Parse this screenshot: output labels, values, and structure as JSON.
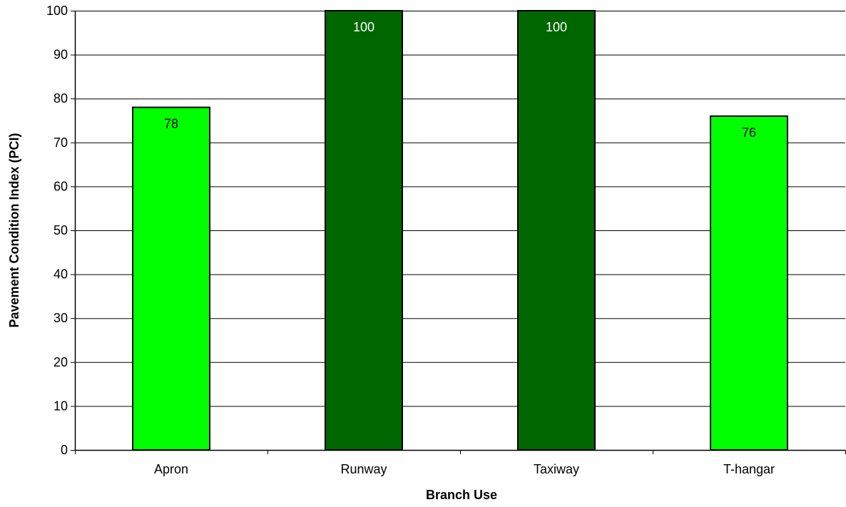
{
  "chart_data": {
    "type": "bar",
    "title": "",
    "xlabel": "Branch Use",
    "ylabel": "Pavement Condition Index (PCI)",
    "categories": [
      "Apron",
      "Runway",
      "Taxiway",
      "T-hangar"
    ],
    "values": [
      78,
      100,
      100,
      76
    ],
    "data_labels": [
      "78",
      "100",
      "100",
      "76"
    ],
    "bar_colors": [
      "#00ff00",
      "#006600",
      "#006600",
      "#00ff00"
    ],
    "label_colors": [
      "#000000",
      "#ffffff",
      "#ffffff",
      "#000000"
    ],
    "ylim": [
      0,
      100
    ],
    "yticks": [
      0,
      10,
      20,
      30,
      40,
      50,
      60,
      70,
      80,
      90,
      100
    ],
    "ytick_labels": [
      "0",
      "10",
      "20",
      "30",
      "40",
      "50",
      "60",
      "70",
      "80",
      "90",
      "100"
    ],
    "grid": true,
    "legend": "none"
  }
}
